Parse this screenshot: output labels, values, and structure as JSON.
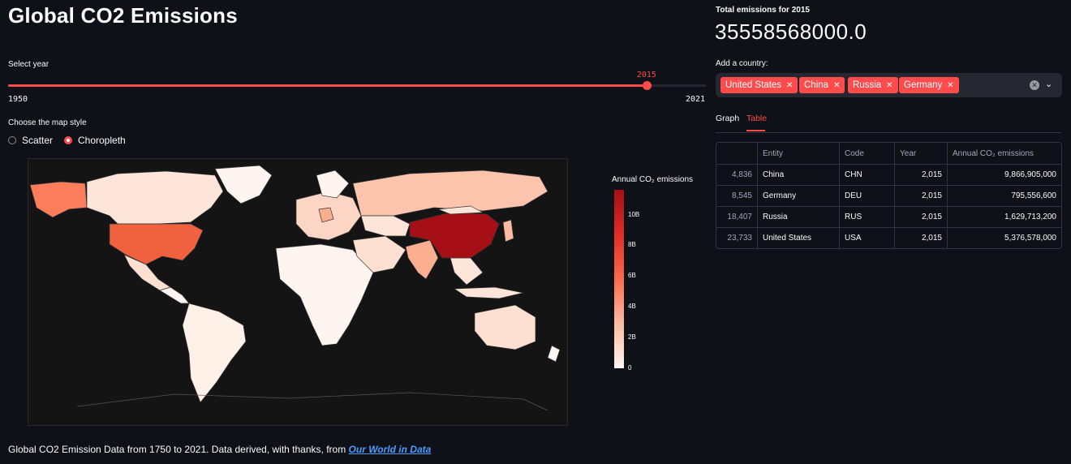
{
  "title": "Global CO2 Emissions",
  "slider": {
    "label": "Select year",
    "value": "2015",
    "min": "1950",
    "max": "2021",
    "fraction": 0.915
  },
  "map_style": {
    "label": "Choose the map style",
    "options": [
      "Scatter",
      "Choropleth"
    ],
    "selected": "Choropleth"
  },
  "legend": {
    "title": "Annual CO₂ emissions",
    "ticks": [
      "10B",
      "8B",
      "6B",
      "4B",
      "2B",
      "0"
    ]
  },
  "footer": {
    "text": "Global CO2 Emission Data from 1750 to 2021. Data derived, with thanks, from ",
    "link": "Our World in Data"
  },
  "metric": {
    "label": "Total emissions for 2015",
    "value": "35558568000.0"
  },
  "country_select": {
    "label": "Add a country:",
    "chips": [
      "United States",
      "China",
      "Russia",
      "Germany"
    ]
  },
  "tabs": [
    "Graph",
    "Table"
  ],
  "active_tab": "Table",
  "table": {
    "columns": [
      "",
      "Entity",
      "Code",
      "Year",
      "Annual CO₂ emissions"
    ],
    "rows": [
      [
        "4,836",
        "China",
        "CHN",
        "2,015",
        "9,866,905,000"
      ],
      [
        "8,545",
        "Germany",
        "DEU",
        "2,015",
        "795,556,600"
      ],
      [
        "18,407",
        "Russia",
        "RUS",
        "2,015",
        "1,629,713,200"
      ],
      [
        "23,733",
        "United States",
        "USA",
        "2,015",
        "5,376,578,000"
      ]
    ]
  },
  "colors": {
    "accent": "#ff4b4b",
    "background": "#0e1117",
    "link": "#4b9eff"
  }
}
